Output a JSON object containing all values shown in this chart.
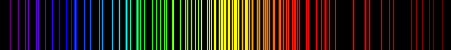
{
  "background": "#000000",
  "figsize": [
    4.52,
    0.5
  ],
  "dpi": 100,
  "wavelength_range": [
    380,
    780
  ],
  "lines": [
    {
      "wl": 388.9,
      "lw": 1.2
    },
    {
      "wl": 396.5,
      "lw": 1.0
    },
    {
      "wl": 402.6,
      "lw": 1.0
    },
    {
      "wl": 412.1,
      "lw": 0.8
    },
    {
      "wl": 414.4,
      "lw": 0.8
    },
    {
      "wl": 438.8,
      "lw": 1.2
    },
    {
      "wl": 443.8,
      "lw": 0.8
    },
    {
      "wl": 447.1,
      "lw": 1.5
    },
    {
      "wl": 471.3,
      "lw": 1.0
    },
    {
      "wl": 492.2,
      "lw": 1.2
    },
    {
      "wl": 501.6,
      "lw": 1.5
    },
    {
      "wl": 504.8,
      "lw": 0.8
    },
    {
      "wl": 587.6,
      "lw": 2.0
    },
    {
      "wl": 667.8,
      "lw": 1.5
    },
    {
      "wl": 706.5,
      "lw": 1.2
    },
    {
      "wl": 728.1,
      "lw": 1.0
    },
    {
      "wl": 533.1,
      "lw": 0.8
    },
    {
      "wl": 534.1,
      "lw": 0.8
    },
    {
      "wl": 540.1,
      "lw": 1.0
    },
    {
      "wl": 544.1,
      "lw": 0.8
    },
    {
      "wl": 556.3,
      "lw": 0.8
    },
    {
      "wl": 558.6,
      "lw": 0.8
    },
    {
      "wl": 565.7,
      "lw": 0.8
    },
    {
      "wl": 568.0,
      "lw": 0.8
    },
    {
      "wl": 571.0,
      "lw": 1.0
    },
    {
      "wl": 574.8,
      "lw": 1.2
    },
    {
      "wl": 576.4,
      "lw": 1.0
    },
    {
      "wl": 580.4,
      "lw": 1.0
    },
    {
      "wl": 582.0,
      "lw": 1.0
    },
    {
      "wl": 583.0,
      "lw": 1.0
    },
    {
      "wl": 585.2,
      "lw": 1.2
    },
    {
      "wl": 587.6,
      "lw": 1.5
    },
    {
      "wl": 588.2,
      "lw": 1.0
    },
    {
      "wl": 590.2,
      "lw": 1.0
    },
    {
      "wl": 591.0,
      "lw": 1.0
    },
    {
      "wl": 594.5,
      "lw": 1.2
    },
    {
      "wl": 596.5,
      "lw": 1.0
    },
    {
      "wl": 597.6,
      "lw": 1.2
    },
    {
      "wl": 598.8,
      "lw": 1.0
    },
    {
      "wl": 600.0,
      "lw": 1.0
    },
    {
      "wl": 603.0,
      "lw": 1.5
    },
    {
      "wl": 607.4,
      "lw": 1.2
    },
    {
      "wl": 609.6,
      "lw": 1.2
    },
    {
      "wl": 612.8,
      "lw": 1.0
    },
    {
      "wl": 614.3,
      "lw": 1.5
    },
    {
      "wl": 616.4,
      "lw": 1.2
    },
    {
      "wl": 618.2,
      "lw": 1.0
    },
    {
      "wl": 621.7,
      "lw": 1.2
    },
    {
      "wl": 623.0,
      "lw": 1.0
    },
    {
      "wl": 626.6,
      "lw": 1.5
    },
    {
      "wl": 628.0,
      "lw": 1.0
    },
    {
      "wl": 630.5,
      "lw": 1.2
    },
    {
      "wl": 633.4,
      "lw": 1.0
    },
    {
      "wl": 635.0,
      "lw": 1.0
    },
    {
      "wl": 638.3,
      "lw": 1.2
    },
    {
      "wl": 640.2,
      "lw": 1.5
    },
    {
      "wl": 641.0,
      "lw": 1.0
    },
    {
      "wl": 643.0,
      "lw": 1.0
    },
    {
      "wl": 645.0,
      "lw": 1.0
    },
    {
      "wl": 650.6,
      "lw": 1.2
    },
    {
      "wl": 653.0,
      "lw": 1.0
    },
    {
      "wl": 659.9,
      "lw": 1.2
    },
    {
      "wl": 664.0,
      "lw": 1.0
    },
    {
      "wl": 667.8,
      "lw": 1.0
    },
    {
      "wl": 671.7,
      "lw": 1.0
    },
    {
      "wl": 677.0,
      "lw": 0.8
    },
    {
      "wl": 692.9,
      "lw": 1.2
    },
    {
      "wl": 703.2,
      "lw": 1.5
    },
    {
      "wl": 717.4,
      "lw": 1.0
    },
    {
      "wl": 724.5,
      "lw": 0.8
    },
    {
      "wl": 743.9,
      "lw": 1.0
    },
    {
      "wl": 748.9,
      "lw": 0.8
    },
    {
      "wl": 753.6,
      "lw": 0.8
    },
    {
      "wl": 760.0,
      "lw": 0.8
    },
    {
      "wl": 763.5,
      "lw": 1.0
    },
    {
      "wl": 772.0,
      "lw": 0.8
    },
    {
      "wl": 405.0,
      "lw": 0.8
    },
    {
      "wl": 420.0,
      "lw": 0.8
    },
    {
      "wl": 427.0,
      "lw": 0.8
    },
    {
      "wl": 433.0,
      "lw": 1.0
    },
    {
      "wl": 447.1,
      "lw": 1.5
    },
    {
      "wl": 455.0,
      "lw": 0.8
    },
    {
      "wl": 460.0,
      "lw": 0.8
    },
    {
      "wl": 468.0,
      "lw": 0.8
    },
    {
      "wl": 480.0,
      "lw": 0.8
    },
    {
      "wl": 486.0,
      "lw": 1.0
    },
    {
      "wl": 492.0,
      "lw": 1.0
    },
    {
      "wl": 496.0,
      "lw": 0.8
    },
    {
      "wl": 502.0,
      "lw": 1.2
    },
    {
      "wl": 508.0,
      "lw": 0.8
    },
    {
      "wl": 515.0,
      "lw": 0.8
    },
    {
      "wl": 519.0,
      "lw": 0.8
    },
    {
      "wl": 522.0,
      "lw": 0.8
    },
    {
      "wl": 526.0,
      "lw": 0.8
    },
    {
      "wl": 528.0,
      "lw": 1.0
    },
    {
      "wl": 534.0,
      "lw": 0.8
    },
    {
      "wl": 546.0,
      "lw": 1.2
    },
    {
      "wl": 550.0,
      "lw": 1.0
    },
    {
      "wl": 553.0,
      "lw": 0.8
    },
    {
      "wl": 559.0,
      "lw": 0.8
    },
    {
      "wl": 564.0,
      "lw": 0.8
    },
    {
      "wl": 570.0,
      "lw": 1.0
    },
    {
      "wl": 577.0,
      "lw": 1.2
    },
    {
      "wl": 579.0,
      "lw": 1.0
    }
  ]
}
